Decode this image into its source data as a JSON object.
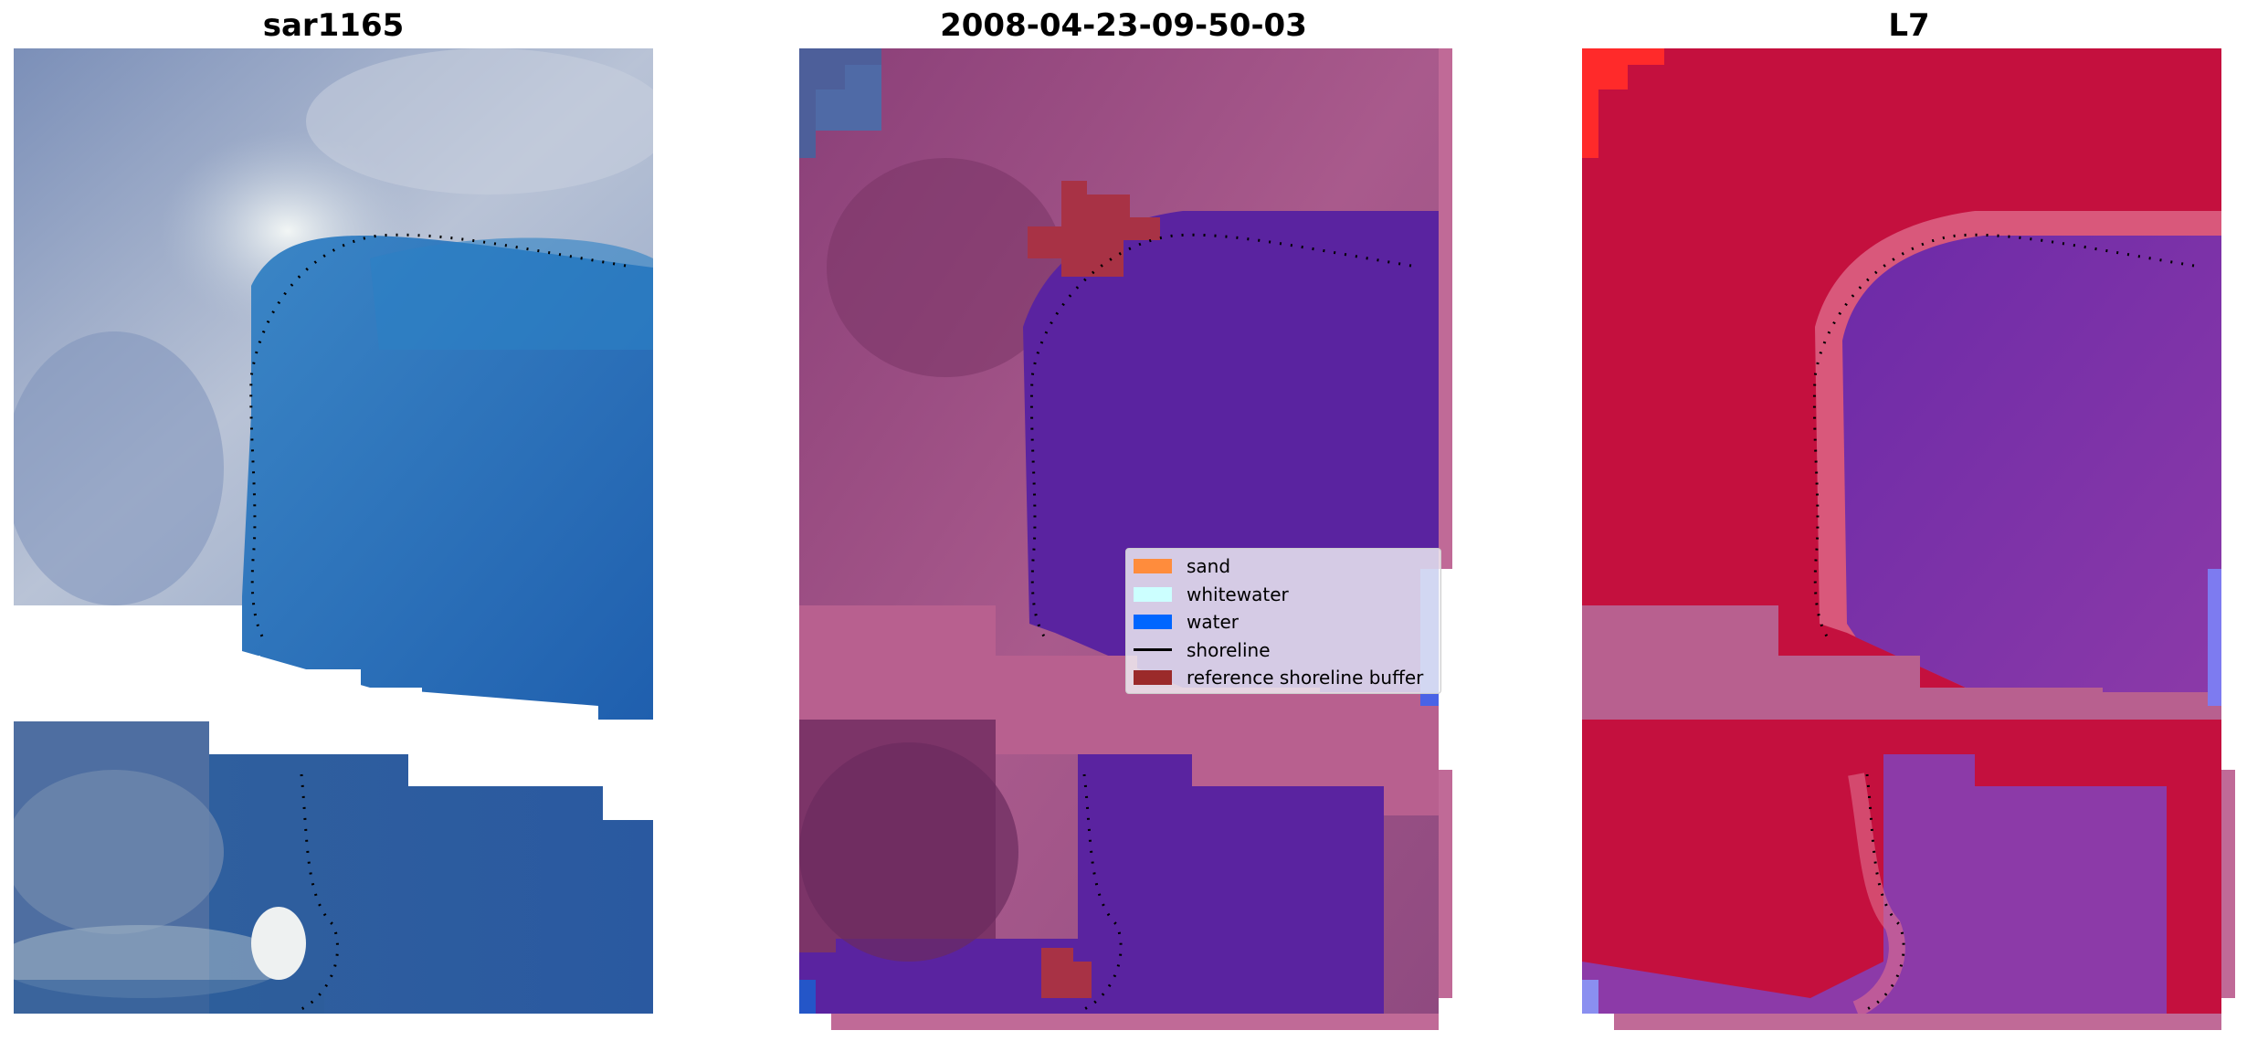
{
  "panels": [
    {
      "title": "sar1165",
      "image": "RGB satellite image"
    },
    {
      "title": "2008-04-23-09-50-03",
      "image": "classified image with overlay"
    },
    {
      "title": "L7",
      "image": "MNDWI / index image"
    }
  ],
  "legend": {
    "items": [
      {
        "label": "sand",
        "color": "#ff8c3c",
        "kind": "patch"
      },
      {
        "label": "whitewater",
        "color": "#ccffff",
        "kind": "patch"
      },
      {
        "label": "water",
        "color": "#0066ff",
        "kind": "patch"
      },
      {
        "label": "shoreline",
        "color": "#000000",
        "kind": "line"
      },
      {
        "label": "reference shoreline buffer",
        "color": "#9b2a2a",
        "kind": "patch"
      }
    ]
  },
  "colors": {
    "rgb_land": "#a9b3c9",
    "rgb_water": "#2a6db0",
    "class_land": "#9a4d80",
    "class_water": "#5a22a0",
    "class_band": "#b8608f",
    "index_land": "#c8103a",
    "index_water": "#7a2aa8"
  }
}
